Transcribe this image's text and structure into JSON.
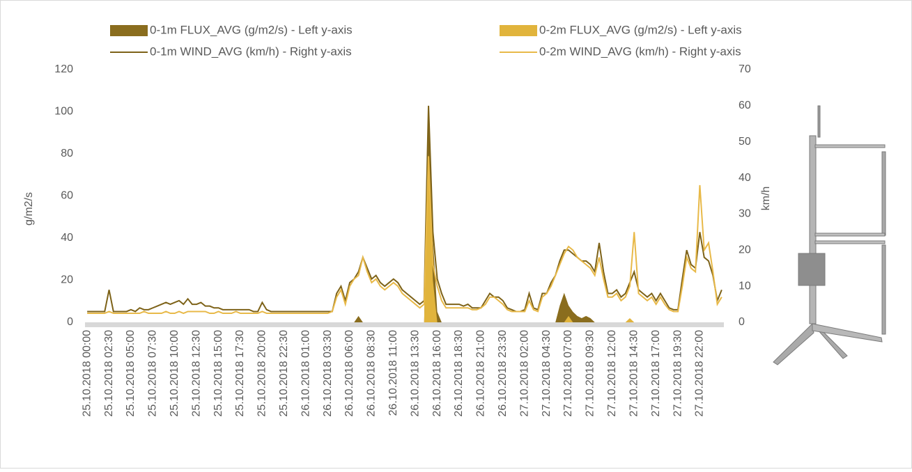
{
  "chart_data": {
    "type": "line",
    "y_label": "g/m2/s",
    "y2_label": "km/h",
    "ylim": [
      0,
      120
    ],
    "yticks": [
      0,
      20,
      40,
      60,
      80,
      100,
      120
    ],
    "y2lim": [
      0,
      70
    ],
    "y2ticks": [
      0,
      10,
      20,
      30,
      40,
      50,
      60,
      70
    ],
    "legend": "top",
    "categories": [
      "25.10.2018 00:00",
      null,
      null,
      null,
      null,
      "25.10.2018 02:30",
      null,
      null,
      null,
      null,
      "25.10.2018 05:00",
      null,
      null,
      null,
      null,
      "25.10.2018 07:30",
      null,
      null,
      null,
      null,
      "25.10.2018 10:00",
      null,
      null,
      null,
      null,
      "25.10.2018 12:30",
      null,
      null,
      null,
      null,
      "25.10.2018 15:00",
      null,
      null,
      null,
      null,
      "25.10.2018 17:30",
      null,
      null,
      null,
      null,
      "25.10.2018 20:00",
      null,
      null,
      null,
      null,
      "25.10.2018 22:30",
      null,
      null,
      null,
      null,
      "26.10.2018 01:00",
      null,
      null,
      null,
      null,
      "26.10.2018 03:30",
      null,
      null,
      null,
      null,
      "26.10.2018 06:00",
      null,
      null,
      null,
      null,
      "26.10.2018 08:30",
      null,
      null,
      null,
      null,
      "26.10.2018 11:00",
      null,
      null,
      null,
      null,
      "26.10.2018 13:30",
      null,
      null,
      null,
      null,
      "26.10.2018 16:00",
      null,
      null,
      null,
      null,
      "26.10.2018 18:30",
      null,
      null,
      null,
      null,
      "26.10.2018 21:00",
      null,
      null,
      null,
      null,
      "26.10.2018 23:30",
      null,
      null,
      null,
      null,
      "27.10.2018 02:00",
      null,
      null,
      null,
      null,
      "27.10.2018 04:30",
      null,
      null,
      null,
      null,
      "27.10.2018 07:00",
      null,
      null,
      null,
      null,
      "27.10.2018 09:30",
      null,
      null,
      null,
      null,
      "27.10.2018 12:00",
      null,
      null,
      null,
      null,
      "27.10.2018 14:30",
      null,
      null,
      null,
      null,
      "27.10.2018 17:00",
      null,
      null,
      null,
      null,
      "27.10.2018 19:30",
      null,
      null,
      null,
      null,
      "27.10.2018 22:00",
      null,
      null,
      null,
      null,
      null
    ],
    "series": [
      {
        "name": "0-1m FLUX_AVG (g/m2/s) - Left y-axis",
        "type": "area",
        "color": "#8a6d1e",
        "values": [
          0,
          0,
          0,
          0,
          0,
          0,
          0,
          0,
          0,
          0,
          0,
          0,
          0,
          0,
          0,
          0,
          0,
          0,
          0,
          0,
          0,
          0,
          0,
          0,
          0,
          0,
          0,
          0,
          0,
          0,
          0,
          0,
          0,
          0,
          0,
          0,
          0,
          0,
          0,
          0,
          0,
          0,
          0,
          0,
          0,
          0,
          0,
          0,
          0,
          0,
          0,
          0,
          0,
          0,
          0,
          0,
          0,
          0,
          0,
          0,
          0,
          0,
          3,
          0,
          0,
          0,
          0,
          0,
          0,
          0,
          0,
          0,
          0,
          0,
          0,
          0,
          0,
          0,
          102,
          40,
          5,
          0,
          0,
          0,
          0,
          0,
          0,
          0,
          0,
          0,
          0,
          0,
          0,
          0,
          0,
          0,
          0,
          0,
          0,
          0,
          0,
          0,
          0,
          0,
          0,
          0,
          0,
          0,
          8,
          14,
          8,
          5,
          3,
          2,
          3,
          2,
          0,
          0,
          0,
          0,
          0,
          0,
          0,
          0,
          0,
          0,
          0,
          0,
          0,
          0,
          0,
          0,
          0,
          0,
          0,
          0,
          0,
          0,
          0,
          0,
          0,
          0,
          0,
          0,
          0,
          0
        ]
      },
      {
        "name": "0-2m FLUX_AVG (g/m2/s) - Left y-axis",
        "type": "area",
        "color": "#e1b43c",
        "values": [
          0,
          0,
          0,
          0,
          0,
          0,
          0,
          0,
          0,
          0,
          0,
          0,
          0,
          0,
          0,
          0,
          0,
          0,
          0,
          0,
          0,
          0,
          0,
          0,
          0,
          0,
          0,
          0,
          0,
          0,
          0,
          0,
          0,
          0,
          0,
          0,
          0,
          0,
          0,
          0,
          0,
          0,
          0,
          0,
          0,
          0,
          0,
          0,
          0,
          0,
          0,
          0,
          0,
          0,
          0,
          0,
          0,
          0,
          0,
          0,
          0,
          0,
          0,
          0,
          0,
          0,
          0,
          0,
          0,
          0,
          0,
          0,
          0,
          0,
          0,
          0,
          0,
          0,
          80,
          20,
          0,
          0,
          0,
          0,
          0,
          0,
          0,
          0,
          0,
          0,
          0,
          0,
          0,
          0,
          0,
          0,
          0,
          0,
          0,
          0,
          0,
          0,
          0,
          0,
          0,
          0,
          0,
          0,
          0,
          0,
          3,
          0,
          0,
          0,
          0,
          0,
          0,
          0,
          0,
          0,
          0,
          0,
          0,
          0,
          2,
          0,
          0,
          0,
          0,
          0,
          0,
          0,
          0,
          0,
          0,
          0,
          0,
          0,
          0,
          0,
          0,
          0,
          0,
          0,
          0,
          0
        ]
      },
      {
        "name": "0-1m WIND_AVG (km/h) - Right y-axis",
        "type": "line",
        "axis": "y2",
        "color": "#7d6218",
        "values": [
          3,
          3,
          3,
          3,
          3,
          9,
          3,
          3,
          3,
          3,
          3.5,
          3,
          4,
          3.5,
          3.5,
          4,
          4.5,
          5,
          5.5,
          5,
          5.5,
          6,
          5,
          6.5,
          5,
          5,
          5.5,
          4.5,
          4.5,
          4,
          4,
          3.5,
          3.5,
          3.5,
          3.5,
          3.5,
          3.5,
          3.5,
          3,
          3,
          5.5,
          3.5,
          3,
          3,
          3,
          3,
          3,
          3,
          3,
          3,
          3,
          3,
          3,
          3,
          3,
          3,
          3,
          8,
          10,
          6,
          11,
          12,
          14,
          18,
          15,
          12,
          13,
          11,
          10,
          11,
          12,
          11,
          9,
          8,
          7,
          6,
          5,
          6,
          60,
          25,
          12,
          8,
          5,
          5,
          5,
          5,
          4.5,
          5,
          4,
          4,
          4,
          6,
          8,
          7,
          7,
          6,
          4,
          3.5,
          3,
          3,
          3.5,
          8,
          4,
          3.5,
          8,
          8,
          11,
          13,
          17,
          20,
          20,
          19,
          18,
          17,
          17,
          16,
          14,
          22,
          14,
          8,
          8,
          9,
          7,
          8,
          11,
          14,
          9,
          8,
          7,
          8,
          6,
          8,
          6,
          4,
          3.5,
          3.5,
          12,
          20,
          16,
          15,
          25,
          18,
          17,
          13,
          6,
          9
        ]
      },
      {
        "name": "0-2m WIND_AVG (km/h) - Right y-axis",
        "type": "line",
        "axis": "y2",
        "color": "#e8b948",
        "values": [
          2.5,
          2.5,
          2.5,
          2.5,
          2.5,
          3,
          2.5,
          2.5,
          2.5,
          2.5,
          2.5,
          2.5,
          2.5,
          3,
          2.5,
          2.5,
          2.5,
          2.5,
          3,
          2.5,
          2.5,
          3,
          2.5,
          3,
          3,
          3,
          3,
          3,
          2.5,
          2.5,
          3,
          2.5,
          2.5,
          2.5,
          3,
          2.5,
          2.5,
          2.5,
          2.5,
          2.5,
          3,
          2.5,
          2.5,
          2.5,
          2.5,
          2.5,
          2.5,
          2.5,
          2.5,
          2.5,
          2.5,
          2.5,
          2.5,
          2.5,
          2.5,
          2.5,
          3,
          7,
          9,
          5,
          10,
          12,
          13,
          18,
          14,
          11,
          12,
          10,
          9,
          10,
          11,
          10,
          8,
          7,
          6,
          5,
          4,
          5,
          46,
          16,
          10,
          6,
          4,
          4,
          4,
          4,
          4,
          4,
          3.5,
          3.5,
          4,
          5,
          7,
          7,
          6,
          5,
          3.5,
          3,
          3,
          3,
          3,
          6,
          3.5,
          3,
          7,
          8,
          10,
          13,
          16,
          19,
          21,
          20,
          18,
          17,
          16,
          15,
          13,
          18,
          12,
          7,
          7,
          8,
          6,
          7,
          10,
          25,
          8,
          7,
          6,
          7,
          5,
          7,
          5,
          3.5,
          3,
          3,
          10,
          18,
          15,
          14,
          38,
          20,
          22,
          14,
          5,
          7
        ]
      }
    ]
  }
}
